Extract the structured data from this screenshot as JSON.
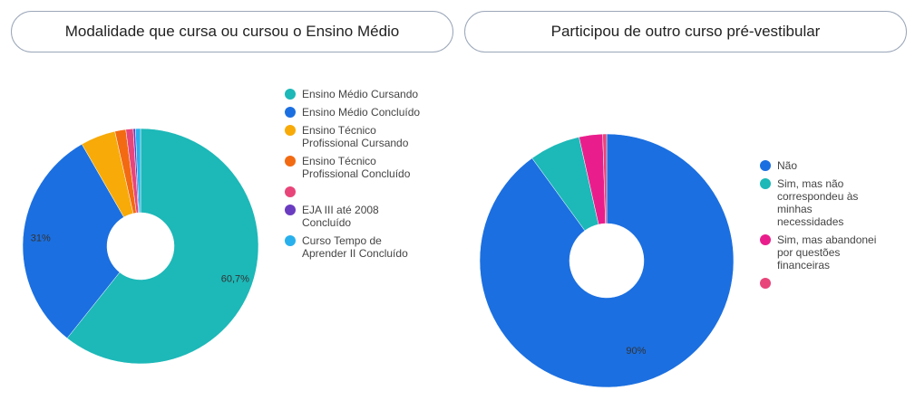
{
  "chart_data": [
    {
      "type": "donut",
      "title": "Modalidade que cursa ou cursou o Ensino Médio",
      "categories": [
        "Ensino Médio Cursando",
        "Ensino Médio Concluído",
        "Ensino Técnico Profissional Cursando",
        "Ensino Técnico Profissional Concluído",
        null,
        "EJA III até 2008 Concluído",
        "Curso Tempo de Aprender II Concluído"
      ],
      "values": [
        60.7,
        31,
        4.8,
        1.5,
        1.0,
        0.3,
        0.7
      ],
      "value_labels": [
        "60,7%",
        "31%",
        null,
        null,
        null,
        null,
        null
      ],
      "colors": [
        "#1db8b8",
        "#1b6fe0",
        "#f7aa08",
        "#f26a12",
        "#e8457a",
        "#6a3cc0",
        "#28b0ec"
      ]
    },
    {
      "type": "donut",
      "title": "Participou de outro curso pré-vestibular",
      "categories": [
        "Não",
        "Sim, mas não correspondeu às minhas necessidades",
        "Sim, mas abandonei por questões financeiras",
        null
      ],
      "values": [
        90,
        6.5,
        3,
        0.5
      ],
      "value_labels": [
        "90%",
        null,
        null,
        null
      ],
      "colors": [
        "#1b6fe0",
        "#1db8b8",
        "#e91e8c",
        "#e8457a"
      ]
    }
  ]
}
